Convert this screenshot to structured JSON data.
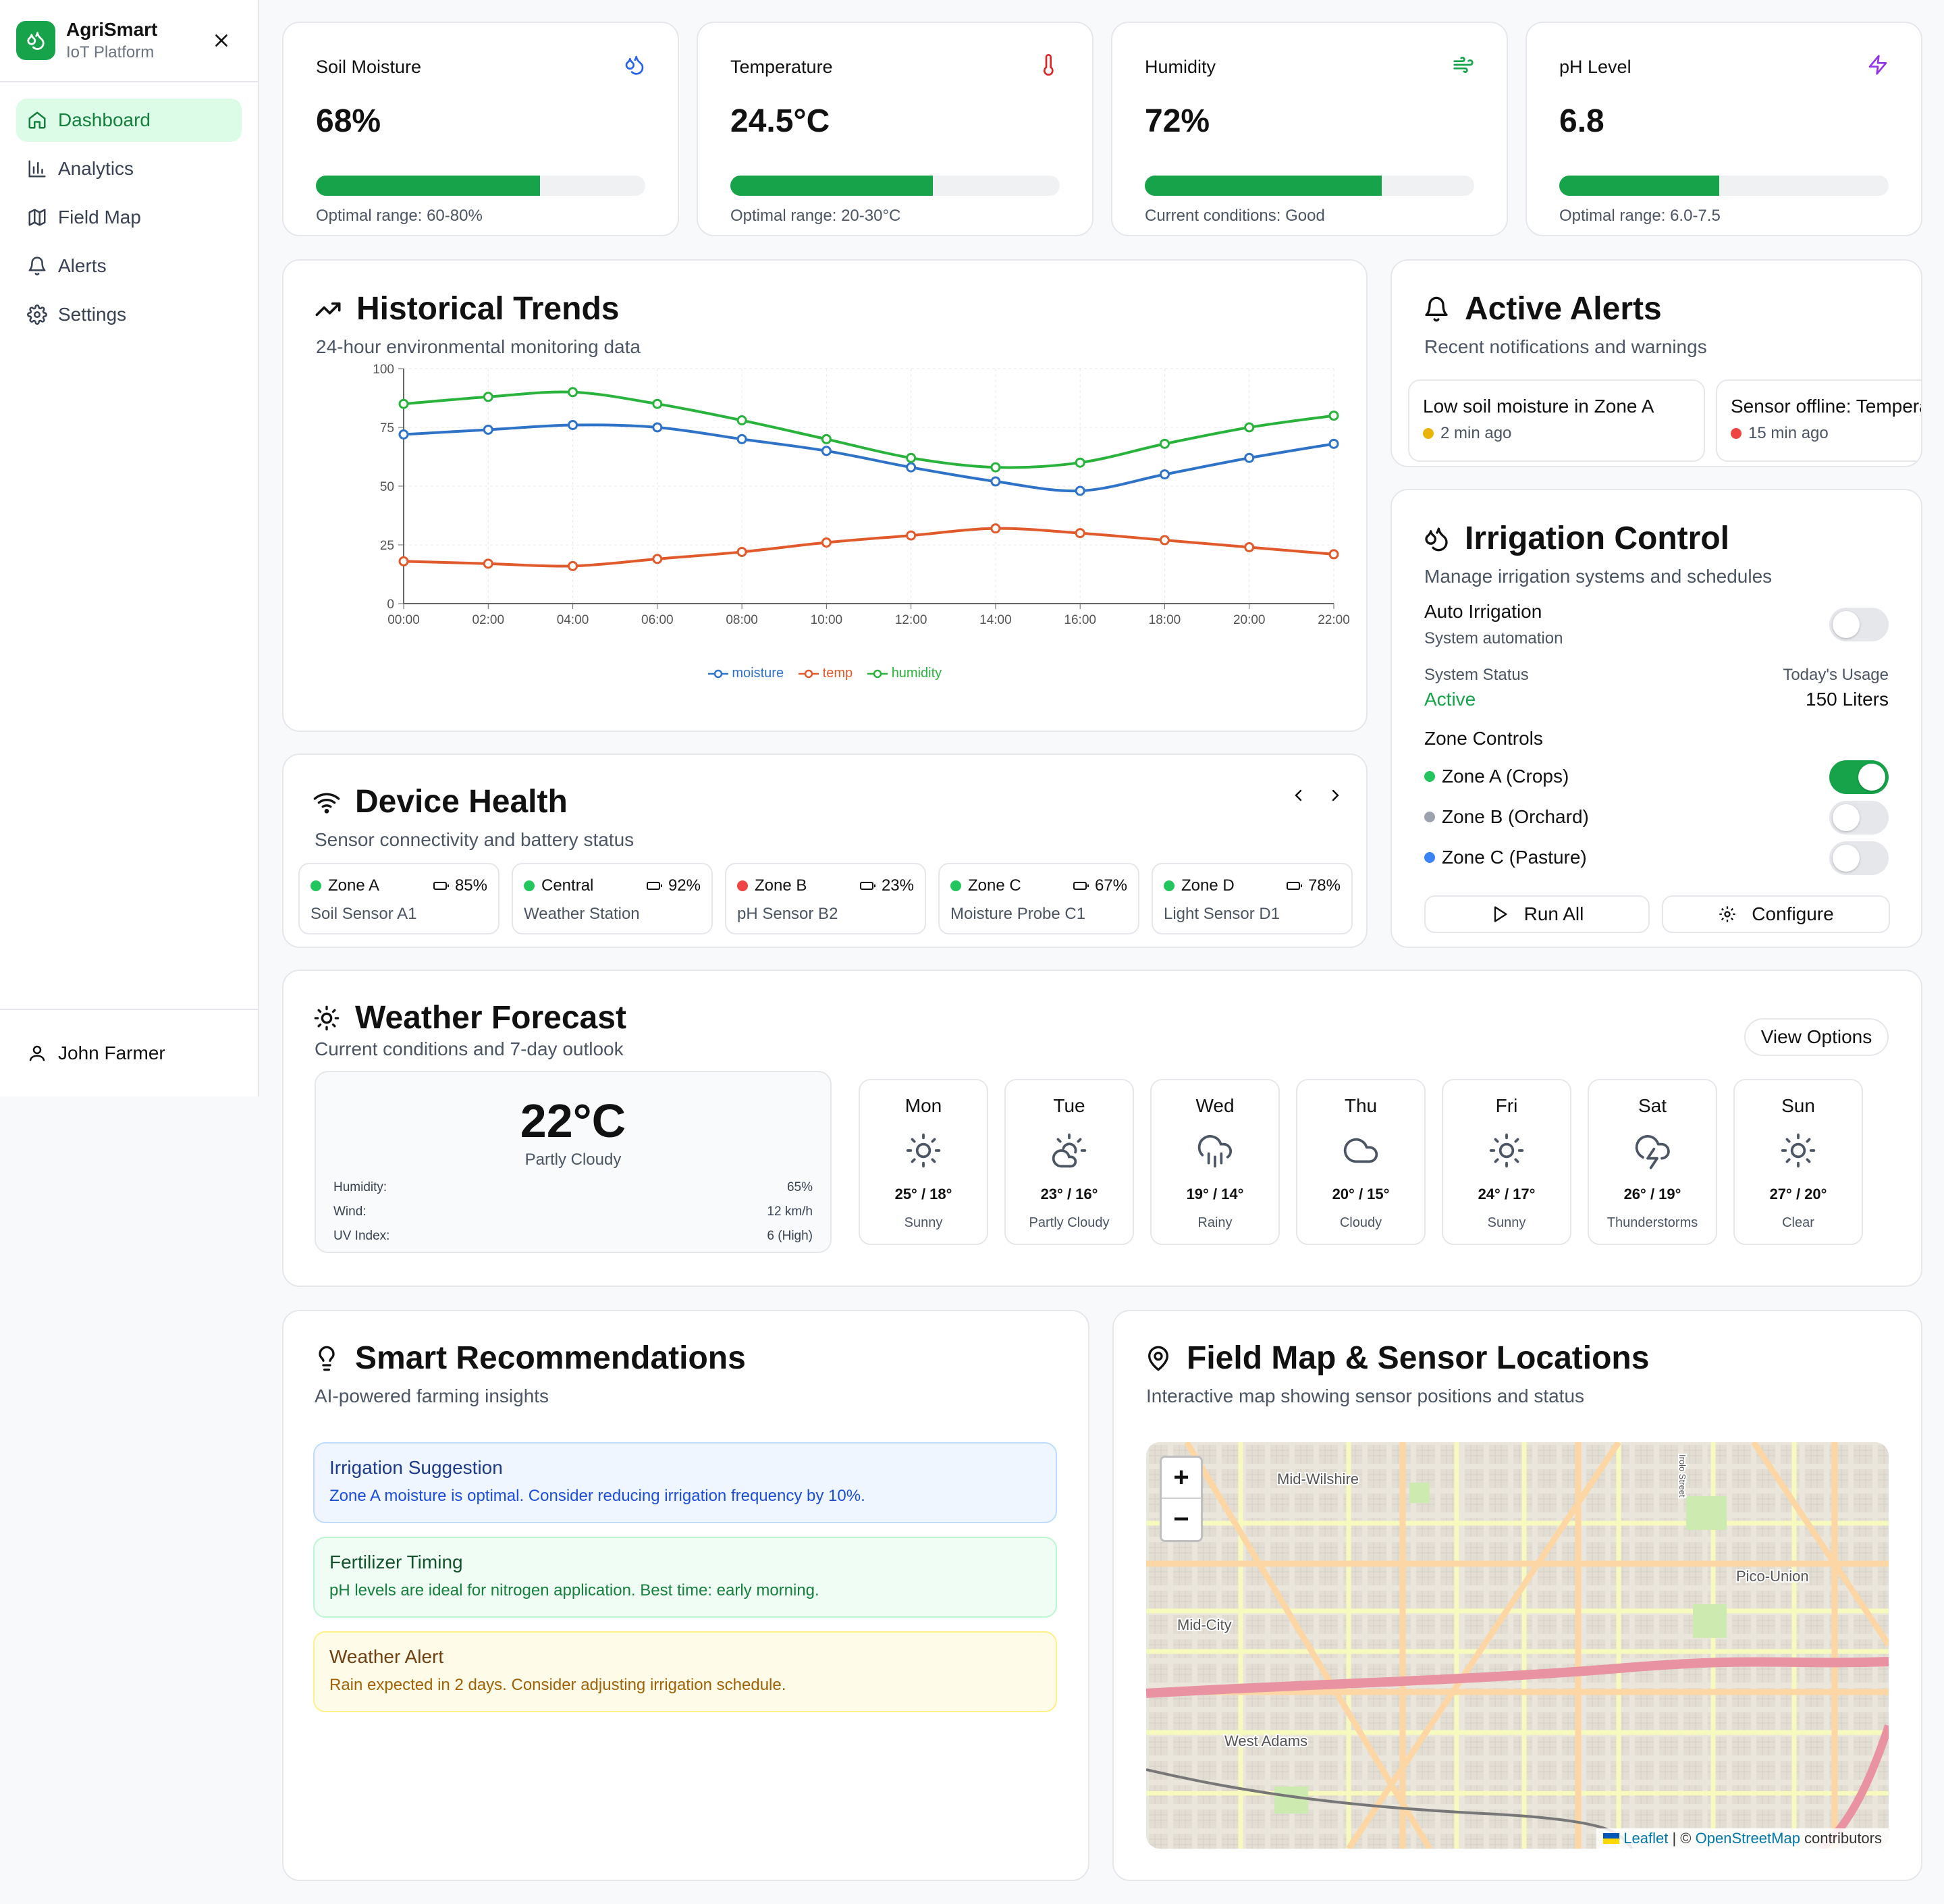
{
  "app": {
    "name": "AgriSmart",
    "subtitle": "IoT Platform"
  },
  "nav": [
    {
      "label": "Dashboard",
      "icon": "home-icon",
      "active": true
    },
    {
      "label": "Analytics",
      "icon": "bar-chart-icon"
    },
    {
      "label": "Field Map",
      "icon": "map-icon"
    },
    {
      "label": "Alerts",
      "icon": "bell-icon"
    },
    {
      "label": "Settings",
      "icon": "gear-icon"
    }
  ],
  "user": {
    "name": "John Farmer"
  },
  "metrics": [
    {
      "title": "Soil Moisture",
      "value": "68%",
      "fill": 0.68,
      "note": "Optimal range: 60-80%",
      "icon": "droplets-icon",
      "icon_color": "#2563eb"
    },
    {
      "title": "Temperature",
      "value": "24.5°C",
      "fill": 0.615,
      "note": "Optimal range: 20-30°C",
      "icon": "thermometer-icon",
      "icon_color": "#dc2626"
    },
    {
      "title": "Humidity",
      "value": "72%",
      "fill": 0.72,
      "note": "Current conditions: Good",
      "icon": "wind-icon",
      "icon_color": "#16a34a"
    },
    {
      "title": "pH Level",
      "value": "6.8",
      "fill": 0.485,
      "note": "Optimal range: 6.0-7.5",
      "icon": "zap-icon",
      "icon_color": "#9333ea"
    }
  ],
  "trends": {
    "title": "Historical Trends",
    "subtitle": "24-hour environmental monitoring data"
  },
  "chart_data": {
    "type": "line",
    "x": [
      "00:00",
      "02:00",
      "04:00",
      "06:00",
      "08:00",
      "10:00",
      "12:00",
      "14:00",
      "16:00",
      "18:00",
      "20:00",
      "22:00"
    ],
    "series": [
      {
        "name": "moisture",
        "color": "#2f73c8",
        "values": [
          72,
          74,
          76,
          75,
          70,
          65,
          58,
          52,
          48,
          55,
          62,
          68
        ]
      },
      {
        "name": "temp",
        "color": "#e05a2b",
        "values": [
          18,
          17,
          16,
          19,
          22,
          26,
          29,
          32,
          30,
          27,
          24,
          21
        ]
      },
      {
        "name": "humidity",
        "color": "#2ab33c",
        "values": [
          85,
          88,
          90,
          85,
          78,
          70,
          62,
          58,
          60,
          68,
          75,
          80
        ]
      }
    ],
    "yticks": [
      0,
      25,
      50,
      75,
      100
    ],
    "ylim": [
      0,
      100
    ],
    "grid": true,
    "legend": "bottom"
  },
  "alerts": {
    "title": "Active Alerts",
    "subtitle": "Recent notifications and warnings",
    "items": [
      {
        "text": "Low soil moisture in Zone A",
        "time": "2 min ago",
        "color": "#eab308"
      },
      {
        "text": "Sensor offline: Temperature",
        "time": "15 min ago",
        "color": "#ef4444"
      }
    ]
  },
  "irrigation": {
    "title": "Irrigation Control",
    "subtitle": "Manage irrigation systems and schedules",
    "auto_label": "Auto Irrigation",
    "auto_sub": "System automation",
    "auto_on": false,
    "status_label": "System Status",
    "status_value": "Active",
    "usage_label": "Today's Usage",
    "usage_value": "150 Liters",
    "zones_label": "Zone Controls",
    "zones": [
      {
        "name": "Zone A (Crops)",
        "color": "#22c55e",
        "on": true
      },
      {
        "name": "Zone B (Orchard)",
        "color": "#9ca3af",
        "on": false
      },
      {
        "name": "Zone C (Pasture)",
        "color": "#3b82f6",
        "on": false
      }
    ],
    "run_all": "Run All",
    "configure": "Configure"
  },
  "devices": {
    "title": "Device Health",
    "subtitle": "Sensor connectivity and battery status",
    "items": [
      {
        "zone": "Zone A",
        "battery": "85%",
        "name": "Soil Sensor A1",
        "color": "#22c55e"
      },
      {
        "zone": "Central",
        "battery": "92%",
        "name": "Weather Station",
        "color": "#22c55e"
      },
      {
        "zone": "Zone B",
        "battery": "23%",
        "name": "pH Sensor B2",
        "color": "#ef4444"
      },
      {
        "zone": "Zone C",
        "battery": "67%",
        "name": "Moisture Probe C1",
        "color": "#22c55e"
      },
      {
        "zone": "Zone D",
        "battery": "78%",
        "name": "Light Sensor D1",
        "color": "#22c55e"
      }
    ]
  },
  "weather": {
    "title": "Weather Forecast",
    "subtitle": "Current conditions and 7-day outlook",
    "view_options": "View Options",
    "current": {
      "temp": "22°C",
      "condition": "Partly Cloudy",
      "rows": [
        {
          "label": "Humidity:",
          "value": "65%"
        },
        {
          "label": "Wind:",
          "value": "12 km/h"
        },
        {
          "label": "UV Index:",
          "value": "6 (High)"
        }
      ]
    },
    "days": [
      {
        "day": "Mon",
        "temp": "25° / 18°",
        "cond": "Sunny",
        "icon": "sun-icon"
      },
      {
        "day": "Tue",
        "temp": "23° / 16°",
        "cond": "Partly Cloudy",
        "icon": "cloud-sun-icon"
      },
      {
        "day": "Wed",
        "temp": "19° / 14°",
        "cond": "Rainy",
        "icon": "cloud-rain-icon"
      },
      {
        "day": "Thu",
        "temp": "20° / 15°",
        "cond": "Cloudy",
        "icon": "cloud-icon"
      },
      {
        "day": "Fri",
        "temp": "24° / 17°",
        "cond": "Sunny",
        "icon": "sun-icon"
      },
      {
        "day": "Sat",
        "temp": "26° / 19°",
        "cond": "Thunderstorms",
        "icon": "cloud-lightning-icon"
      },
      {
        "day": "Sun",
        "temp": "27° / 20°",
        "cond": "Clear",
        "icon": "sun-icon"
      }
    ]
  },
  "recommendations": {
    "title": "Smart Recommendations",
    "subtitle": "AI-powered farming insights",
    "items": [
      {
        "title": "Irrigation Suggestion",
        "text": "Zone A moisture is optimal. Consider reducing irrigation frequency by 10%.",
        "bg": "#eff6ff",
        "border": "#bfdbfe",
        "title_color": "#1e3a8a",
        "text_color": "#1d4ed8"
      },
      {
        "title": "Fertilizer Timing",
        "text": "pH levels are ideal for nitrogen application. Best time: early morning.",
        "bg": "#f0fdf4",
        "border": "#bbf7d0",
        "title_color": "#14532d",
        "text_color": "#15803d"
      },
      {
        "title": "Weather Alert",
        "text": "Rain expected in 2 days. Consider adjusting irrigation schedule.",
        "bg": "#fefce8",
        "border": "#fef08a",
        "title_color": "#713f12",
        "text_color": "#a16207"
      }
    ]
  },
  "map": {
    "title": "Field Map & Sensor Locations",
    "subtitle": "Interactive map showing sensor positions and status",
    "zoom_in": "+",
    "zoom_out": "−",
    "labels": [
      "Mid-Wilshire",
      "Pico-Union",
      "Mid-City",
      "West Adams",
      "Irolo Street"
    ],
    "attribution_leaflet": "Leaflet",
    "attribution_sep": " | © ",
    "attribution_osm": "OpenStreetMap",
    "attribution_tail": " contributors"
  }
}
